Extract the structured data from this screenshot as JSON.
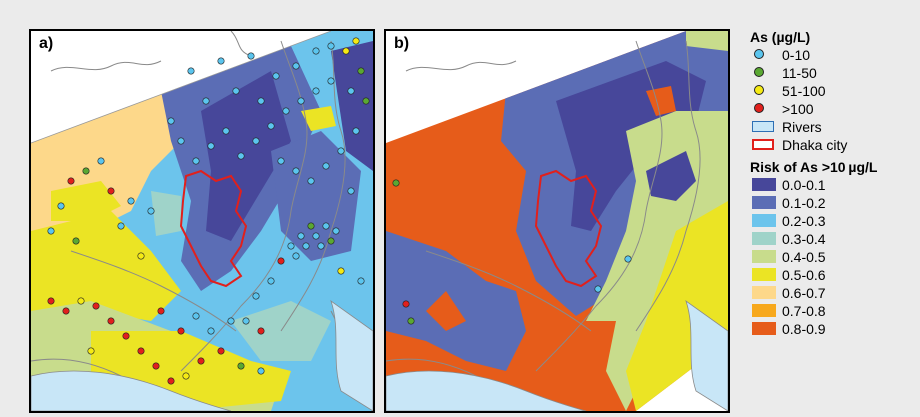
{
  "panels": [
    {
      "label": "a)"
    },
    {
      "label": "b)"
    }
  ],
  "legend": {
    "arsenic_title": "As (µg/L)",
    "arsenic_classes": [
      {
        "label": "0-10",
        "color": "#5bc5ee"
      },
      {
        "label": "11-50",
        "color": "#5aa832"
      },
      {
        "label": "51-100",
        "color": "#f5ea14"
      },
      {
        "label": ">100",
        "color": "#e1201c"
      }
    ],
    "rivers_label": "Rivers",
    "city_label": "Dhaka city",
    "risk_title": "Risk of As >10 µg/L",
    "risk_classes": [
      {
        "label": "0.0-0.1",
        "color": "#47479a"
      },
      {
        "label": "0.1-0.2",
        "color": "#5b6db5"
      },
      {
        "label": "0.2-0.3",
        "color": "#6cc4ec"
      },
      {
        "label": "0.3-0.4",
        "color": "#9fd3c9"
      },
      {
        "label": "0.4-0.5",
        "color": "#c8dc8c"
      },
      {
        "label": "0.5-0.6",
        "color": "#ebe424"
      },
      {
        "label": "0.6-0.7",
        "color": "#fdd88a"
      },
      {
        "label": "0.7-0.8",
        "color": "#f7a81c"
      },
      {
        "label": "0.8-0.9",
        "color": "#e65c1a"
      }
    ]
  }
}
